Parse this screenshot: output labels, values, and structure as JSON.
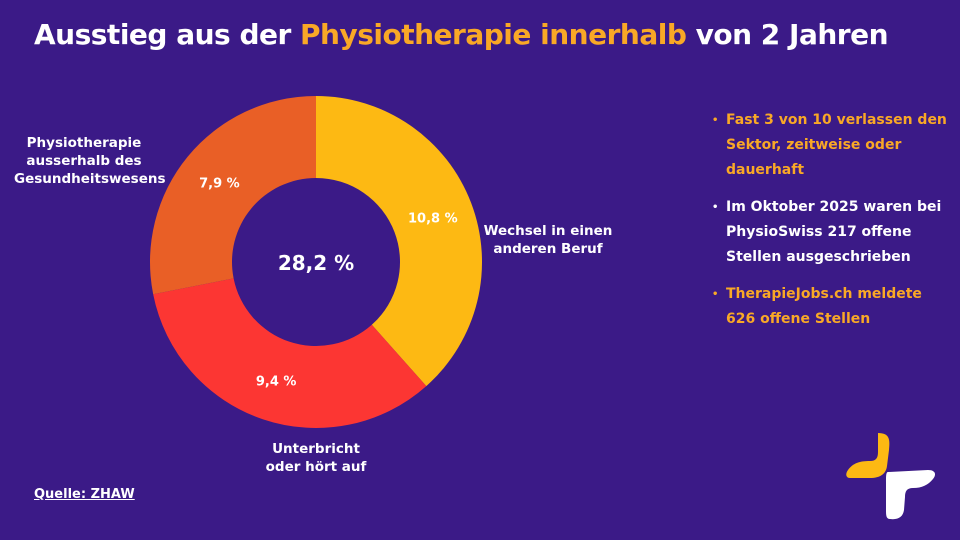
{
  "title": {
    "part1": "Ausstieg aus der ",
    "highlight": "Physiotherapie innerhalb",
    "part2": " von 2 Jahren"
  },
  "chart_data": {
    "type": "pie",
    "donut": true,
    "total_label": "28,2 %",
    "slices": [
      {
        "label": "Wechsel in einen anderen Beruf",
        "value": 10.8,
        "value_label": "10,8 %",
        "color": "#fdb913"
      },
      {
        "label": "Unterbricht oder hört auf",
        "value": 9.4,
        "value_label": "9,4 %",
        "color": "#fc3633"
      },
      {
        "label": "Physiotherapie ausserhalb des Gesundheitswesens",
        "value": 7.9,
        "value_label": "7,9 %",
        "color": "#e95f26"
      }
    ]
  },
  "labels": {
    "beruf": [
      "Wechsel in einen",
      "anderen Beruf"
    ],
    "unterbricht": [
      "Unterbricht",
      "oder hört auf"
    ],
    "ausserhalb": [
      "Physiotherapie",
      "ausserhalb des",
      "Gesundheitswesens"
    ]
  },
  "bullets": [
    {
      "text": "Fast 3 von 10 verlassen den Sektor, zeitweise oder dauerhaft",
      "color": "#f9a826"
    },
    {
      "text": "Im Oktober 2025 waren bei PhysioSwiss 217 offene Stellen ausgeschrieben",
      "color": "#ffffff"
    },
    {
      "text": "TherapieJobs.ch meldete 626 offene Stellen",
      "color": "#f9a826"
    }
  ],
  "source": "Quelle: ZHAW",
  "colors": {
    "background": "#3b1a87",
    "accent": "#f9a826"
  }
}
